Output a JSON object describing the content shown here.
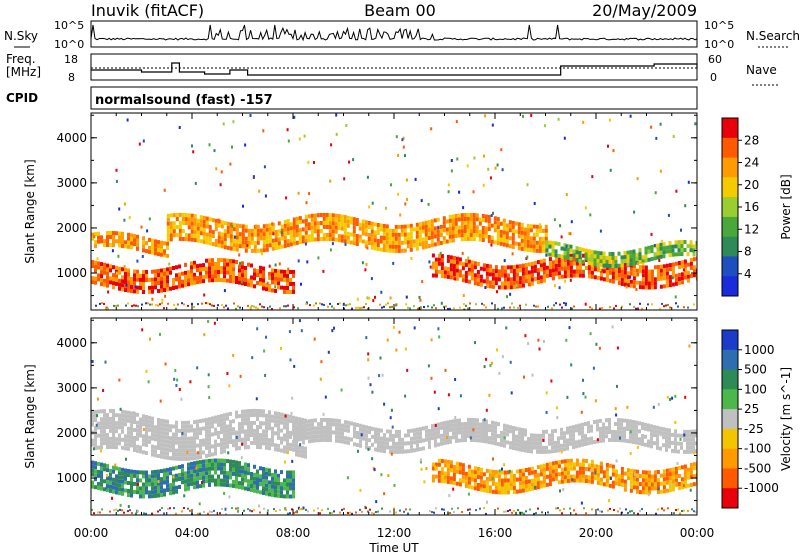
{
  "header": {
    "station": "Inuvik (fitACF)",
    "beam": "Beam 00",
    "date": "20/May/2009"
  },
  "status_panel": {
    "nsky_label": "N.Sky",
    "nsearch_label": "N.Search",
    "freq_label_line1": "Freq.",
    "freq_label_line2": "[MHz]",
    "nave_label": "Nave",
    "cpid_label": "CPID",
    "cpid_text": "normalsound (fast) -157",
    "noise_ticks": [
      "10^5",
      "10^0"
    ],
    "freq_ticks": [
      "18",
      "8"
    ],
    "nave_ticks": [
      "60",
      "0"
    ]
  },
  "chart_data": [
    {
      "type": "heatmap",
      "title": "",
      "xlabel": "Time UT",
      "ylabel": "Slant Range [km]",
      "xticks": [
        "00:00",
        "04:00",
        "08:00",
        "12:00",
        "16:00",
        "20:00",
        "00:00"
      ],
      "yticks": [
        1000,
        2000,
        3000,
        4000
      ],
      "ylim": [
        180,
        4550
      ],
      "colorbar": {
        "label": "Power [dB]",
        "ticks": [
          "28",
          "24",
          "20",
          "16",
          "12",
          "8",
          "4"
        ],
        "colors": [
          "#e8000b",
          "#ff5a00",
          "#ff9a00",
          "#f2cc00",
          "#9acd32",
          "#4aa83a",
          "#2e8b57",
          "#1f4fbf",
          "#1a2bdc"
        ]
      },
      "bands": [
        {
          "t_start_h": 0.0,
          "t_end_h": 3.0,
          "range_km": [
            1500,
            1800
          ],
          "level": "20-24 dB"
        },
        {
          "t_start_h": 0.0,
          "t_end_h": 8.0,
          "range_km": [
            700,
            1200
          ],
          "level": "24-28 dB"
        },
        {
          "t_start_h": 3.0,
          "t_end_h": 18.0,
          "range_km": [
            1600,
            2200
          ],
          "level": "12-20 dB"
        },
        {
          "t_start_h": 13.5,
          "t_end_h": 24.0,
          "range_km": [
            800,
            1300
          ],
          "level": "20-28 dB"
        },
        {
          "t_start_h": 18.0,
          "t_end_h": 24.0,
          "range_km": [
            1300,
            1600
          ],
          "level": "8-16 dB"
        }
      ]
    },
    {
      "type": "heatmap",
      "title": "",
      "xlabel": "Time UT",
      "ylabel": "Slant Range [km]",
      "xticks": [
        "00:00",
        "04:00",
        "08:00",
        "12:00",
        "16:00",
        "20:00",
        "00:00"
      ],
      "yticks": [
        1000,
        2000,
        3000,
        4000
      ],
      "ylim": [
        180,
        4550
      ],
      "colorbar": {
        "label": "Velocity [m s^-1]",
        "ticks": [
          "1000",
          "500",
          "100",
          "25",
          "-25",
          "-100",
          "-500",
          "-1000"
        ],
        "colors": [
          "#1a3cc8",
          "#2e6db0",
          "#2e8b57",
          "#4cb84c",
          "#c0c0c0",
          "#f5c400",
          "#ff9a00",
          "#ff5a00",
          "#e8000b"
        ]
      },
      "bands": [
        {
          "t_start_h": 0.0,
          "t_end_h": 8.5,
          "range_km": [
            1600,
            2400
          ],
          "level": "ground scatter"
        },
        {
          "t_start_h": 0.0,
          "t_end_h": 8.0,
          "range_km": [
            700,
            1300
          ],
          "level": "25 to 500"
        },
        {
          "t_start_h": 8.0,
          "t_end_h": 24.0,
          "range_km": [
            1700,
            2200
          ],
          "level": "ground scatter"
        },
        {
          "t_start_h": 13.5,
          "t_end_h": 24.0,
          "range_km": [
            800,
            1300
          ],
          "level": "-100 to -500"
        }
      ]
    }
  ]
}
